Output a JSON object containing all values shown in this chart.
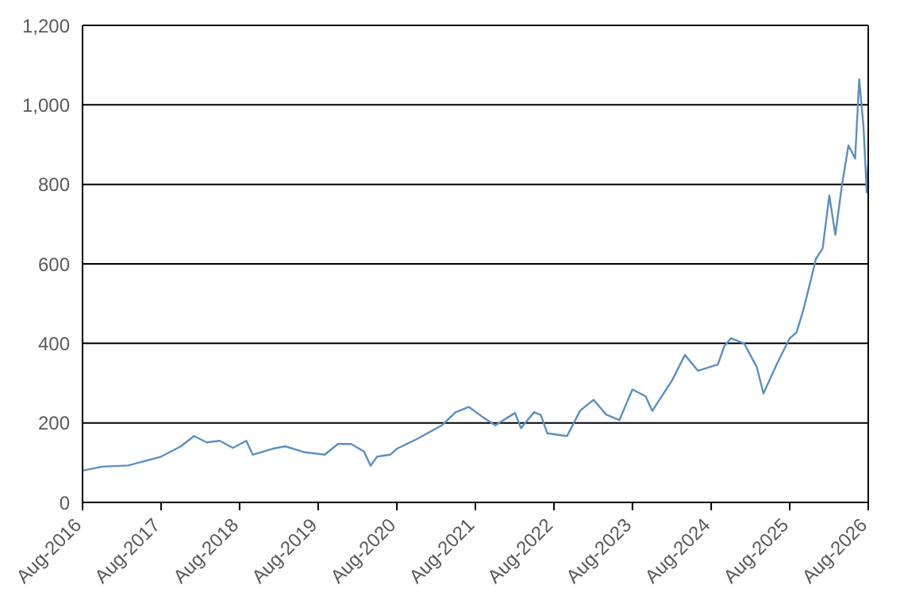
{
  "chart_data": {
    "type": "line",
    "x": [
      "2016-08",
      "2016-11",
      "2017-03",
      "2017-08",
      "2017-11",
      "2018-01",
      "2018-03",
      "2018-05",
      "2018-07",
      "2018-09",
      "2018-10",
      "2019-01",
      "2019-03",
      "2019-06",
      "2019-09",
      "2019-11",
      "2020-01",
      "2020-03",
      "2020-04",
      "2020-05",
      "2020-07",
      "2020-08",
      "2020-11",
      "2021-03",
      "2021-05",
      "2021-07",
      "2021-09",
      "2021-11",
      "2022-02",
      "2022-03",
      "2022-05",
      "2022-06",
      "2022-07",
      "2022-10",
      "2022-12",
      "2023-02",
      "2023-04",
      "2023-06",
      "2023-08",
      "2023-10",
      "2023-11",
      "2024-02",
      "2024-04",
      "2024-06",
      "2024-09",
      "2024-10",
      "2024-11",
      "2025-01",
      "2025-03",
      "2025-04",
      "2025-06",
      "2025-08",
      "2025-09",
      "2025-10",
      "2025-11",
      "2025-12",
      "2026-01",
      "2026-02",
      "2026-03",
      "2026-04",
      "2026-05",
      "2026-06-01",
      "2026-06-20",
      "2026-07-10",
      "2026-07-25",
      "2026-08"
    ],
    "series": [
      {
        "color": "#5b8fc0",
        "values": [
          80,
          90,
          93,
          115,
          141,
          167,
          151,
          155,
          137,
          155,
          120,
          135,
          141,
          126,
          120,
          147,
          147,
          128,
          92,
          115,
          120,
          135,
          159,
          195,
          227,
          240,
          216,
          194,
          225,
          187,
          227,
          220,
          174,
          167,
          231,
          258,
          221,
          207,
          284,
          267,
          230,
          307,
          371,
          331,
          347,
          393,
          413,
          400,
          340,
          274,
          347,
          413,
          427,
          480,
          546,
          613,
          639,
          772,
          673,
          799,
          898,
          865,
          1064,
          945,
          780,
          850
        ]
      }
    ],
    "xlim": [
      "2016-08",
      "2026-08"
    ],
    "xticks": [
      {
        "value": "2016-08",
        "label": "Aug-2016"
      },
      {
        "value": "2017-08",
        "label": "Aug-2017"
      },
      {
        "value": "2018-08",
        "label": "Aug-2018"
      },
      {
        "value": "2019-08",
        "label": "Aug-2019"
      },
      {
        "value": "2020-08",
        "label": "Aug-2020"
      },
      {
        "value": "2021-08",
        "label": "Aug-2021"
      },
      {
        "value": "2022-08",
        "label": "Aug-2022"
      },
      {
        "value": "2023-08",
        "label": "Aug-2023"
      },
      {
        "value": "2024-08",
        "label": "Aug-2024"
      },
      {
        "value": "2025-08",
        "label": "Aug-2025"
      },
      {
        "value": "2026-08",
        "label": "Aug-2026"
      }
    ],
    "ylim": [
      0,
      1200
    ],
    "yticks": [
      0,
      200,
      400,
      600,
      800,
      {
        "value": 1000,
        "label": "1,000"
      },
      {
        "value": 1200,
        "label": "1,200"
      }
    ],
    "grid": "y",
    "legend": false,
    "marker": "none",
    "line_style": "solid"
  }
}
